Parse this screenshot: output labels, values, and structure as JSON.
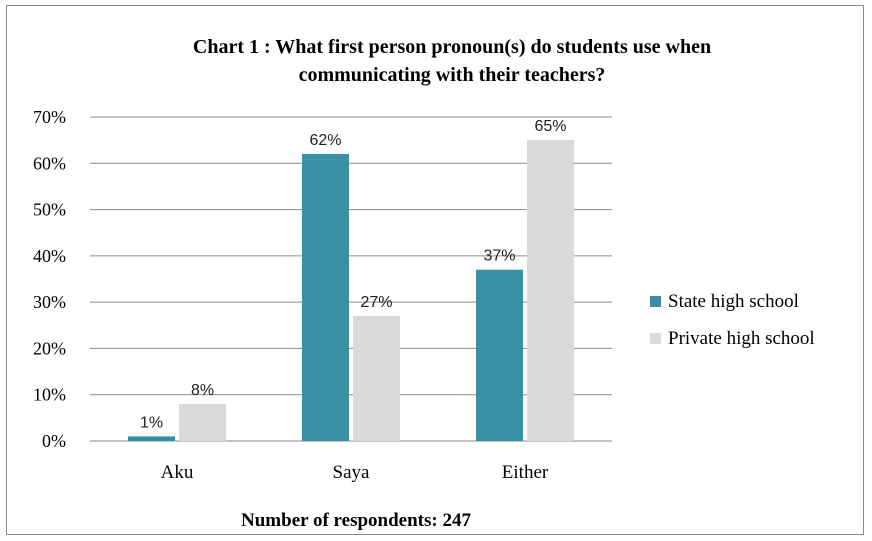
{
  "chart_data": {
    "type": "bar",
    "title_lines": [
      "Chart 1 : What first person pronoun(s) do students use when",
      "communicating with their teachers?"
    ],
    "xlabel": "Number of respondents: 247",
    "ylabel": "",
    "categories": [
      "Aku",
      "Saya",
      "Either"
    ],
    "ylim": [
      0,
      0.7
    ],
    "yticks": [
      "0%",
      "10%",
      "20%",
      "30%",
      "40%",
      "50%",
      "60%",
      "70%"
    ],
    "series": [
      {
        "name": "State high school",
        "values": [
          0.01,
          0.62,
          0.37
        ],
        "labels": [
          "1%",
          "62%",
          "37%"
        ],
        "color": "#3a8fa5"
      },
      {
        "name": "Private high school",
        "values": [
          0.08,
          0.27,
          0.65
        ],
        "labels": [
          "8%",
          "27%",
          "65%"
        ],
        "color": "#dadada"
      }
    ],
    "grid": true,
    "legend_position": "right"
  }
}
